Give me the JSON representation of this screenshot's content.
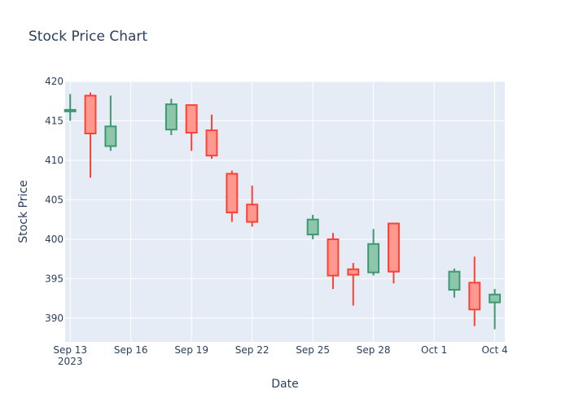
{
  "chart_data": {
    "type": "candlestick",
    "title": "Stock Price Chart",
    "xlabel": "Date",
    "ylabel": "Stock Price",
    "x_range": [
      "2023-09-12T18:00",
      "2023-10-04T12:00"
    ],
    "ylim": [
      387,
      420
    ],
    "y_ticks": [
      390,
      395,
      400,
      405,
      410,
      415,
      420
    ],
    "x_ticks": [
      {
        "date": "2023-09-13",
        "label": "Sep 13",
        "sublabel": "2023"
      },
      {
        "date": "2023-09-16",
        "label": "Sep 16",
        "sublabel": ""
      },
      {
        "date": "2023-09-19",
        "label": "Sep 19",
        "sublabel": ""
      },
      {
        "date": "2023-09-22",
        "label": "Sep 22",
        "sublabel": ""
      },
      {
        "date": "2023-09-25",
        "label": "Sep 25",
        "sublabel": ""
      },
      {
        "date": "2023-09-28",
        "label": "Sep 28",
        "sublabel": ""
      },
      {
        "date": "2023-10-01",
        "label": "Oct 1",
        "sublabel": ""
      },
      {
        "date": "2023-10-04",
        "label": "Oct 4",
        "sublabel": ""
      }
    ],
    "grid": true,
    "colors": {
      "increasing_line": "#3d9970",
      "increasing_fill": "#8ec6ac",
      "decreasing_line": "#ff4136",
      "decreasing_fill": "#ff9990",
      "plot_bg": "#e5ecf6",
      "grid": "#ffffff",
      "text": "#2a3f5f"
    },
    "candles": [
      {
        "date": "2023-09-13",
        "open": 416.2,
        "high": 418.4,
        "low": 415.0,
        "close": 416.4
      },
      {
        "date": "2023-09-14",
        "open": 418.2,
        "high": 418.6,
        "low": 407.8,
        "close": 413.4
      },
      {
        "date": "2023-09-15",
        "open": 411.8,
        "high": 418.2,
        "low": 411.2,
        "close": 414.3
      },
      {
        "date": "2023-09-18",
        "open": 413.9,
        "high": 417.8,
        "low": 413.2,
        "close": 417.1
      },
      {
        "date": "2023-09-19",
        "open": 417.0,
        "high": 417.0,
        "low": 411.2,
        "close": 413.5
      },
      {
        "date": "2023-09-20",
        "open": 413.8,
        "high": 415.8,
        "low": 410.2,
        "close": 410.6
      },
      {
        "date": "2023-09-21",
        "open": 408.3,
        "high": 408.7,
        "low": 402.2,
        "close": 403.4
      },
      {
        "date": "2023-09-22",
        "open": 404.4,
        "high": 406.8,
        "low": 401.6,
        "close": 402.2
      },
      {
        "date": "2023-09-25",
        "open": 400.6,
        "high": 403.1,
        "low": 400.0,
        "close": 402.5
      },
      {
        "date": "2023-09-26",
        "open": 400.0,
        "high": 400.8,
        "low": 393.7,
        "close": 395.4
      },
      {
        "date": "2023-09-27",
        "open": 396.2,
        "high": 397.0,
        "low": 391.6,
        "close": 395.5
      },
      {
        "date": "2023-09-28",
        "open": 395.8,
        "high": 401.3,
        "low": 395.4,
        "close": 399.4
      },
      {
        "date": "2023-09-29",
        "open": 402.0,
        "high": 402.0,
        "low": 394.4,
        "close": 395.9
      },
      {
        "date": "2023-10-02",
        "open": 393.6,
        "high": 396.3,
        "low": 392.6,
        "close": 395.9
      },
      {
        "date": "2023-10-03",
        "open": 394.5,
        "high": 397.8,
        "low": 389.0,
        "close": 391.1
      },
      {
        "date": "2023-10-04",
        "open": 392.0,
        "high": 393.7,
        "low": 388.6,
        "close": 393.0
      }
    ]
  }
}
